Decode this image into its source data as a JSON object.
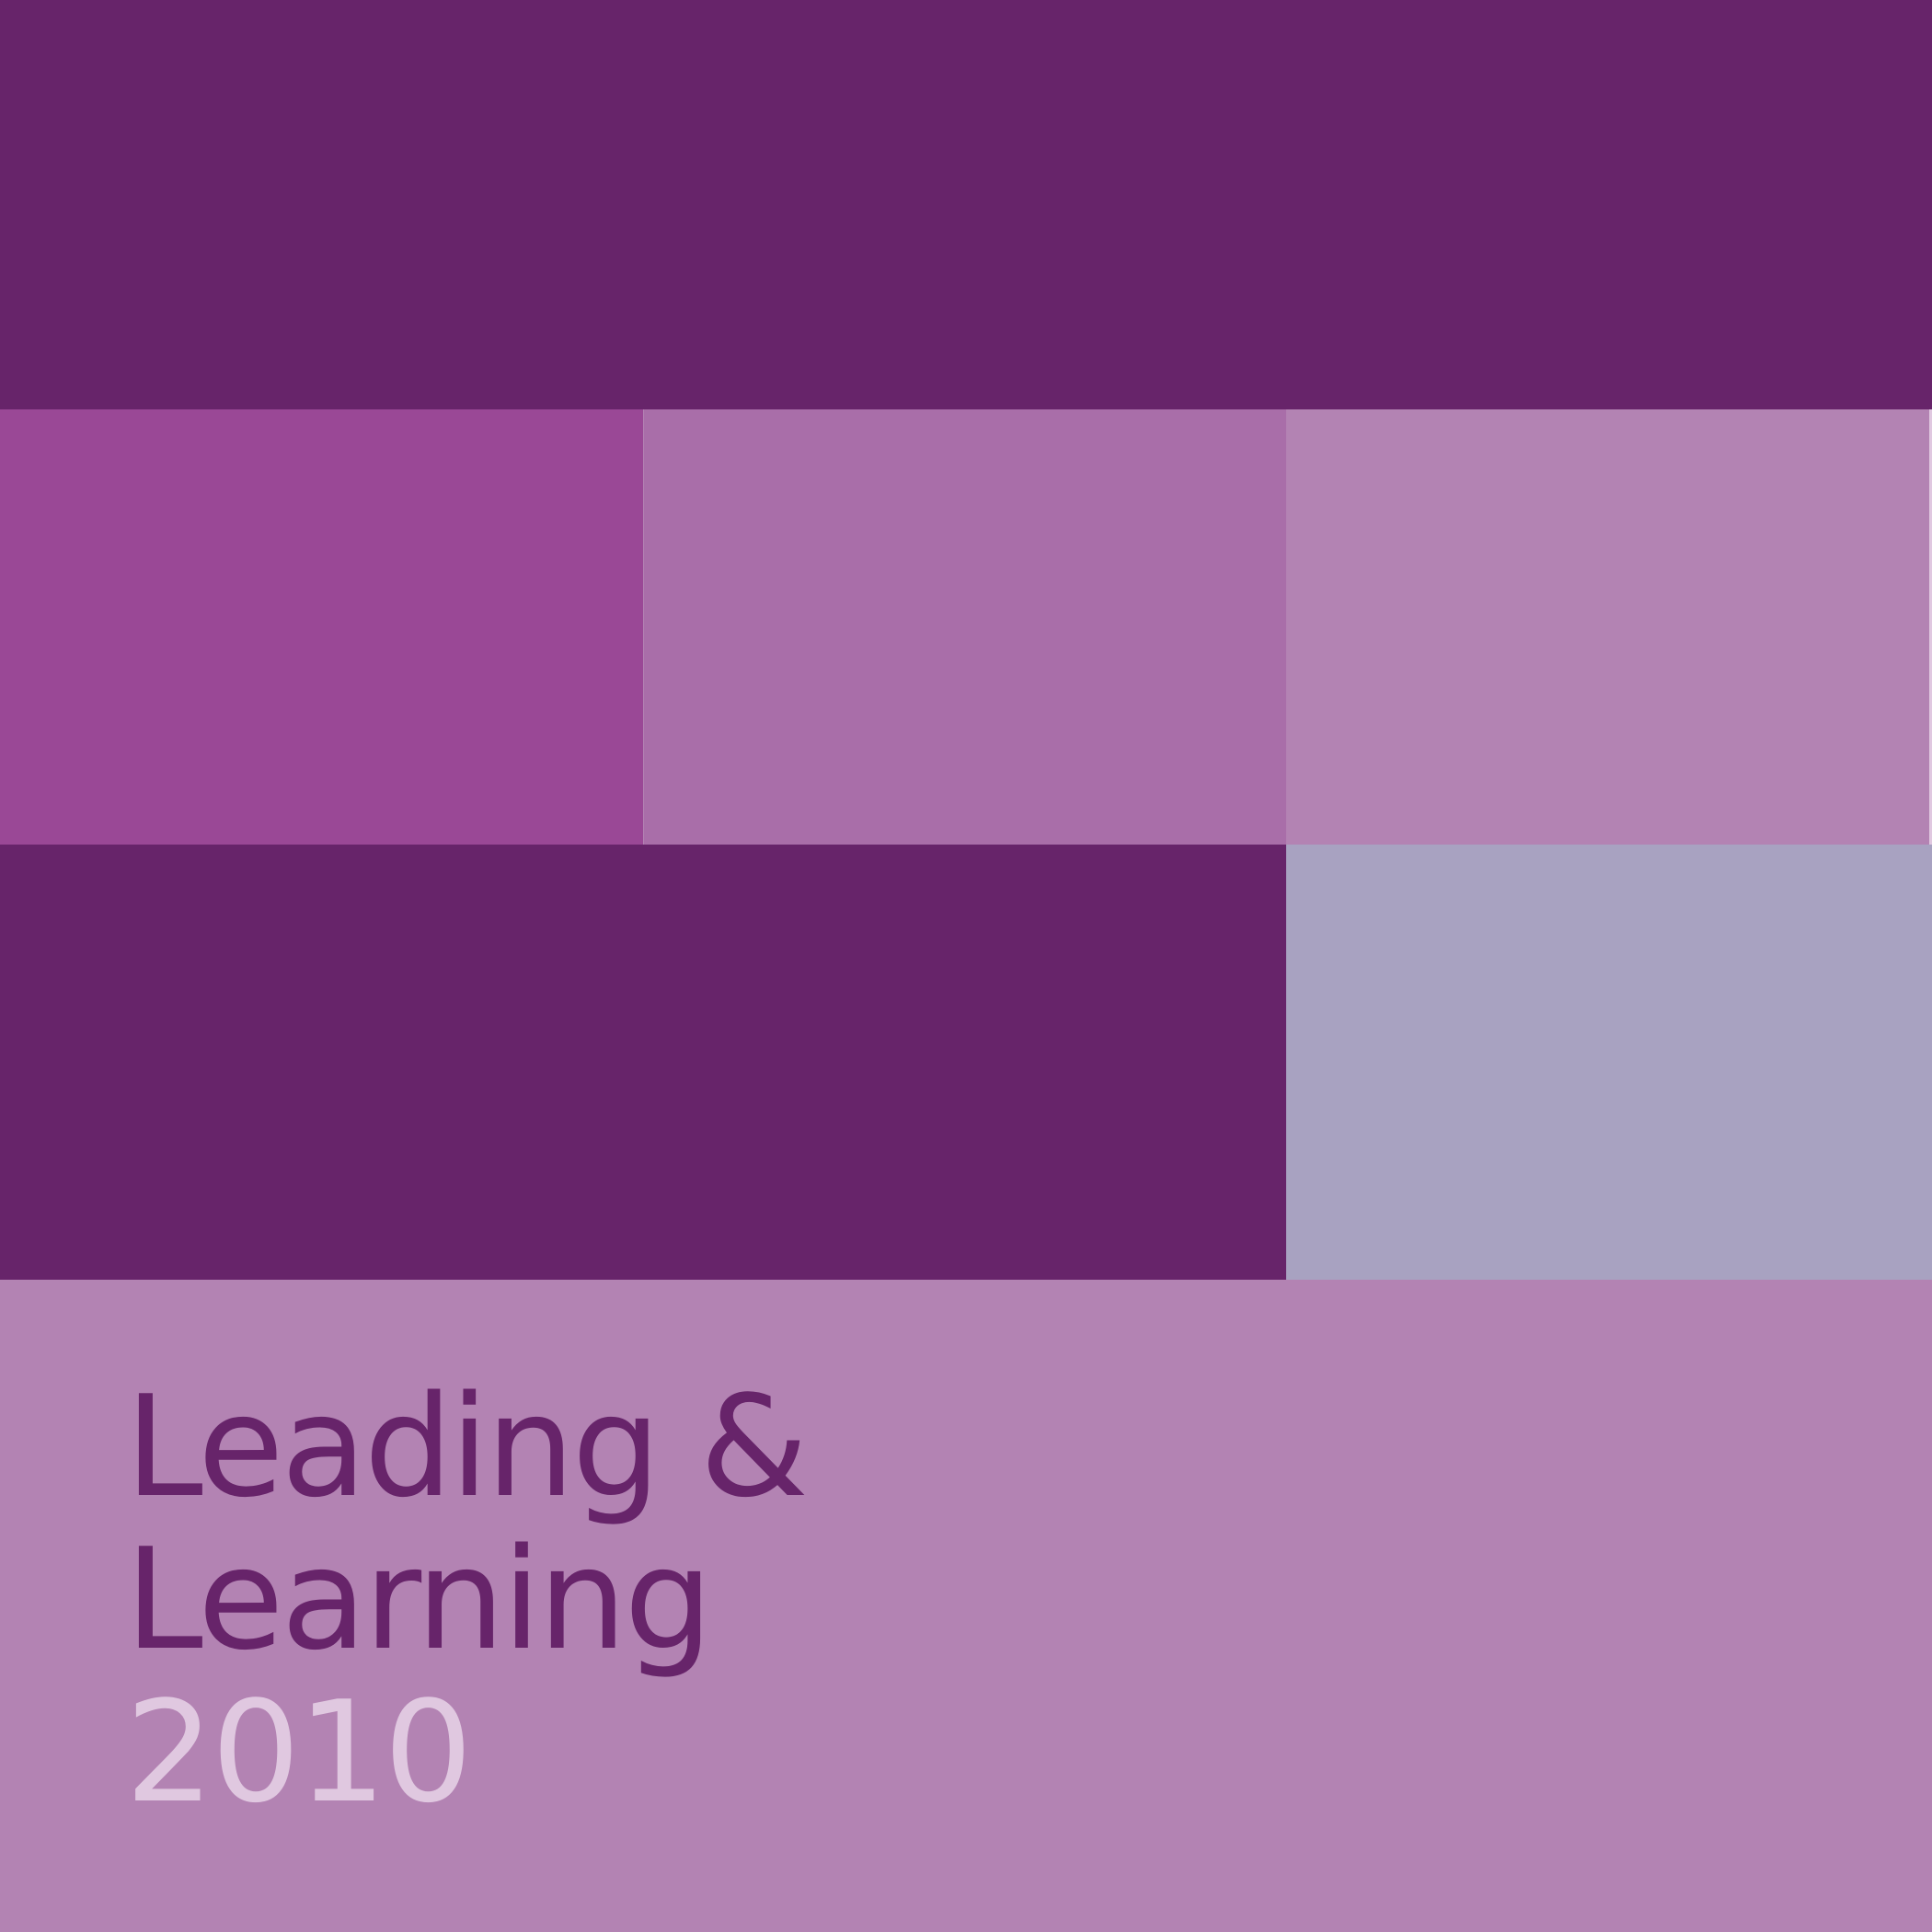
{
  "cover": {
    "title_line_1": "Leading &",
    "title_line_2": "Learning",
    "year": "2010"
  },
  "colors": {
    "dark_purple": "#67246a",
    "magenta": "#9a4896",
    "medium_purple": "#a96ea9",
    "light_purple": "#b383b3",
    "lavender_grey": "#a8a2c1",
    "pale_lilac": "#e0c8e0"
  }
}
